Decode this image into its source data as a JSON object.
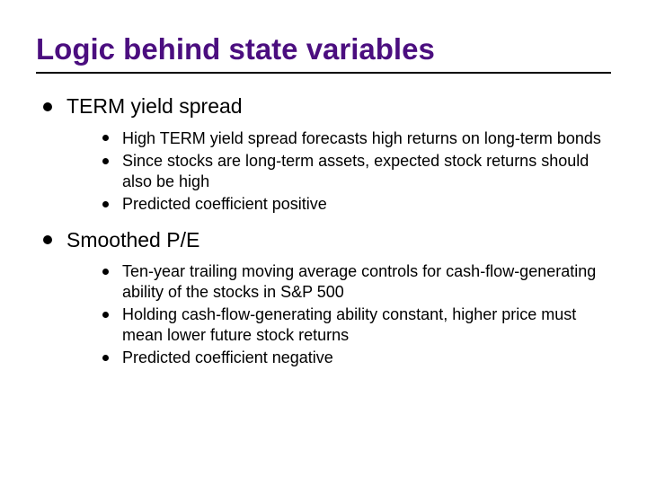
{
  "title": {
    "text": "Logic behind state variables",
    "color": "#4b0e7f",
    "fontsize": 33,
    "fontweight": "bold"
  },
  "rule_color": "#000000",
  "bullets": {
    "lvl1_marker_color": "#000000",
    "lvl1_fontsize": 23,
    "lvl2_marker_color": "#000000",
    "lvl2_fontsize": 18,
    "items": [
      {
        "label": "TERM yield spread",
        "children": [
          "High TERM yield spread forecasts high returns on long-term bonds",
          "Since stocks are long-term assets, expected stock returns should also be high",
          "Predicted coefficient positive"
        ]
      },
      {
        "label": "Smoothed P/E",
        "children": [
          "Ten-year trailing moving average controls for cash-flow-generating ability of the stocks in S&P 500",
          "Holding cash-flow-generating ability constant, higher price must mean lower future stock returns",
          "Predicted coefficient negative"
        ]
      }
    ]
  },
  "background_color": "#ffffff",
  "text_color": "#000000"
}
